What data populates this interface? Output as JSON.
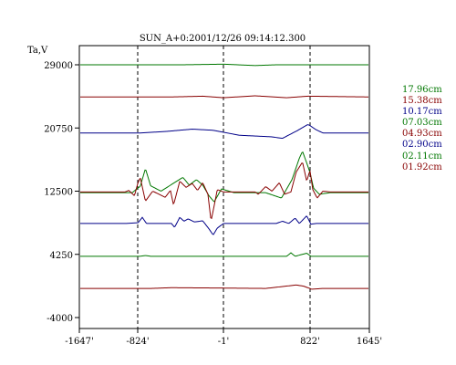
{
  "chart_data": {
    "type": "line",
    "title": "SUN_A+0:2001/12/26 09:14:12.300",
    "ylabel": "Ta,V",
    "xlabel": "",
    "x_ticks": [
      "-1647'",
      "-824'",
      "-1'",
      "822'",
      "1645'"
    ],
    "y_ticks": [
      "29000",
      "20750",
      "12500",
      "4250",
      "-4000"
    ],
    "xlim": [
      -1647,
      1645
    ],
    "ylim": [
      -4000,
      33125
    ],
    "grid": "dashed vertical lines at inner x ticks",
    "legend_position": "right",
    "colors": {
      "green": "#007700",
      "red": "#880000",
      "blue": "#000088"
    },
    "series": [
      {
        "name": "17.96cm",
        "color": "#007700",
        "baseline": 29000,
        "points": [
          [
            -1647,
            0
          ],
          [
            -400,
            0
          ],
          [
            0,
            80
          ],
          [
            300,
            -100
          ],
          [
            500,
            0
          ],
          [
            1645,
            0
          ]
        ]
      },
      {
        "name": "15.38cm",
        "color": "#880000",
        "baseline": 24800,
        "points": [
          [
            -1647,
            0
          ],
          [
            -500,
            0
          ],
          [
            -200,
            100
          ],
          [
            0,
            -100
          ],
          [
            300,
            150
          ],
          [
            600,
            -100
          ],
          [
            800,
            100
          ],
          [
            1645,
            0
          ]
        ]
      },
      {
        "name": "10.17cm",
        "color": "#000088",
        "baseline": 20100,
        "points": [
          [
            -1647,
            0
          ],
          [
            -800,
            0
          ],
          [
            -550,
            200
          ],
          [
            -300,
            500
          ],
          [
            -100,
            350
          ],
          [
            150,
            -300
          ],
          [
            450,
            -500
          ],
          [
            560,
            -700
          ],
          [
            700,
            300
          ],
          [
            800,
            1100
          ],
          [
            900,
            450
          ],
          [
            1000,
            0
          ],
          [
            1645,
            0
          ]
        ]
      },
      {
        "name": "07.03cm",
        "color": "#007700",
        "baseline": 12300,
        "points": [
          [
            -1647,
            0
          ],
          [
            -900,
            0
          ],
          [
            -800,
            800
          ],
          [
            -750,
            3150
          ],
          [
            -700,
            900
          ],
          [
            -600,
            200
          ],
          [
            -450,
            1500
          ],
          [
            -390,
            2000
          ],
          [
            -330,
            1000
          ],
          [
            -260,
            1700
          ],
          [
            -200,
            1000
          ],
          [
            -140,
            -400
          ],
          [
            -90,
            -1200
          ],
          [
            -20,
            500
          ],
          [
            100,
            0
          ],
          [
            400,
            0
          ],
          [
            550,
            -700
          ],
          [
            650,
            1700
          ],
          [
            720,
            4500
          ],
          [
            750,
            5400
          ],
          [
            800,
            3500
          ],
          [
            870,
            600
          ],
          [
            950,
            -200
          ],
          [
            1100,
            0
          ],
          [
            1645,
            0
          ]
        ]
      },
      {
        "name": "04.93cm",
        "color": "#880000",
        "baseline": 12400,
        "points": [
          [
            -1647,
            0
          ],
          [
            -1000,
            0
          ],
          [
            -950,
            200
          ],
          [
            -870,
            -500
          ],
          [
            -800,
            1900
          ],
          [
            -750,
            -1200
          ],
          [
            -680,
            100
          ],
          [
            -560,
            -700
          ],
          [
            -510,
            200
          ],
          [
            -480,
            -1700
          ],
          [
            -420,
            1400
          ],
          [
            -360,
            600
          ],
          [
            -300,
            1100
          ],
          [
            -250,
            200
          ],
          [
            -200,
            1200
          ],
          [
            -150,
            -300
          ],
          [
            -120,
            -3800
          ],
          [
            -90,
            -1800
          ],
          [
            -60,
            300
          ],
          [
            0,
            0
          ],
          [
            300,
            0
          ],
          [
            330,
            -300
          ],
          [
            400,
            700
          ],
          [
            460,
            100
          ],
          [
            530,
            1200
          ],
          [
            580,
            -300
          ],
          [
            640,
            0
          ],
          [
            690,
            2600
          ],
          [
            750,
            3900
          ],
          [
            790,
            1400
          ],
          [
            820,
            2800
          ],
          [
            860,
            300
          ],
          [
            920,
            -800
          ],
          [
            1000,
            100
          ],
          [
            1100,
            0
          ],
          [
            1645,
            0
          ]
        ]
      },
      {
        "name": "02.90cm",
        "color": "#000088",
        "baseline": 8280,
        "points": [
          [
            -1647,
            0
          ],
          [
            -1000,
            0
          ],
          [
            -820,
            100
          ],
          [
            -780,
            800
          ],
          [
            -740,
            0
          ],
          [
            -500,
            0
          ],
          [
            -470,
            -500
          ],
          [
            -420,
            800
          ],
          [
            -380,
            300
          ],
          [
            -340,
            600
          ],
          [
            -280,
            200
          ],
          [
            -200,
            350
          ],
          [
            -140,
            -700
          ],
          [
            -100,
            -1500
          ],
          [
            -60,
            -600
          ],
          [
            0,
            0
          ],
          [
            500,
            0
          ],
          [
            560,
            300
          ],
          [
            620,
            0
          ],
          [
            680,
            700
          ],
          [
            720,
            0
          ],
          [
            790,
            1000
          ],
          [
            830,
            -100
          ],
          [
            900,
            0
          ],
          [
            1645,
            0
          ]
        ]
      },
      {
        "name": "02.11cm",
        "color": "#007700",
        "baseline": 4000,
        "points": [
          [
            -1647,
            0
          ],
          [
            -800,
            0
          ],
          [
            -750,
            100
          ],
          [
            -700,
            0
          ],
          [
            600,
            0
          ],
          [
            640,
            450
          ],
          [
            680,
            0
          ],
          [
            790,
            400
          ],
          [
            830,
            0
          ],
          [
            1645,
            0
          ]
        ]
      },
      {
        "name": "01.92cm",
        "color": "#880000",
        "baseline": -200,
        "points": [
          [
            -1647,
            0
          ],
          [
            -700,
            0
          ],
          [
            -500,
            100
          ],
          [
            0,
            50
          ],
          [
            400,
            0
          ],
          [
            690,
            450
          ],
          [
            760,
            300
          ],
          [
            840,
            -100
          ],
          [
            1000,
            0
          ],
          [
            1645,
            0
          ]
        ]
      }
    ]
  }
}
